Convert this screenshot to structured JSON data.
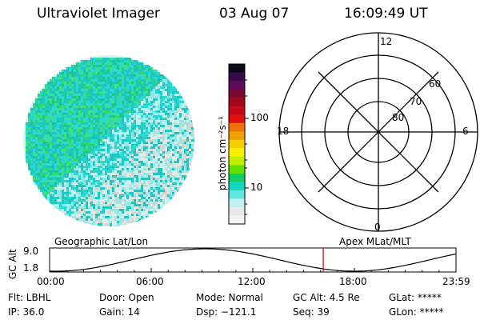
{
  "header": {
    "instrument": "Ultraviolet Imager",
    "date": "03 Aug 07",
    "time": "16:09:49 UT"
  },
  "colorbar": {
    "unit_label": "photon cm⁻²s⁻¹",
    "ticks": [
      "100",
      "10"
    ],
    "colors": [
      "#0a0a14",
      "#3a0a4a",
      "#60085c",
      "#7a0a30",
      "#a0081a",
      "#c80818",
      "#e01010",
      "#f07008",
      "#f0a000",
      "#f8d000",
      "#f8f000",
      "#c0f000",
      "#60e000",
      "#10d060",
      "#10d8c0",
      "#60e8e0",
      "#c0f0f0",
      "#e8e8e8",
      "#f4f4f4"
    ]
  },
  "polar_plot": {
    "mlt_labels": [
      "12",
      "18",
      "6",
      "0"
    ],
    "mlat_labels": [
      "60",
      "70",
      "80"
    ]
  },
  "timeline": {
    "ylabel": "GC Alt",
    "ymax": "9.0",
    "ymin": "1.8",
    "left_label": "Geographic Lat/Lon",
    "right_label": "Apex MLat/MLT",
    "xticks": [
      "00:00",
      "06:00",
      "12:00",
      "18:00",
      "23:59"
    ],
    "marker_time_hours": 16.16,
    "marker_color": "#c00000"
  },
  "footer": {
    "filter": "Flt: LBHL",
    "door": "Door: Open",
    "mode": "Mode: Normal",
    "gc_alt": "GC Alt: 4.5 Re",
    "glat": "GLat: *****",
    "ip": "IP: 36.0",
    "gain": "Gain: 14",
    "dsp": "Dsp: −121.1",
    "seq": "Seq: 39",
    "glon": "GLon: *****"
  },
  "image_palette": [
    "#1ec8c0",
    "#2ad8d0",
    "#18c890",
    "#30d870",
    "#3ee080",
    "#8ee8e8",
    "#c8f0f0",
    "#e0ece8",
    "#d0d8d0"
  ]
}
